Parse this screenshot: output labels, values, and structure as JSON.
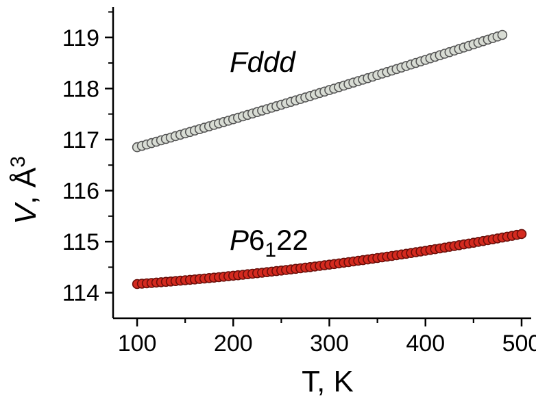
{
  "chart_data": {
    "type": "scatter",
    "xlabel": "T, K",
    "ylabel": {
      "var": "V",
      "rest": ", Å",
      "sup": "3"
    },
    "xlim": [
      75,
      510
    ],
    "ylim": [
      113.5,
      119.6
    ],
    "x_ticks": [
      "100",
      "200",
      "300",
      "400",
      "500"
    ],
    "y_ticks": [
      "114",
      "115",
      "116",
      "117",
      "118",
      "119"
    ],
    "grid": false,
    "series": [
      {
        "name": "Fddd",
        "marker_fill": "#d8dcd4",
        "marker_edge": "#555555",
        "x_start": 100,
        "x_end": 480,
        "x_step": 5,
        "y_start": 116.85,
        "y_end": 119.05
      },
      {
        "name": {
          "italic": "P",
          "main": "6",
          "sub": "1",
          "tail": "22"
        },
        "marker_fill": "#d42a1f",
        "marker_edge": "#6a0f0a",
        "x_start": 100,
        "x_end": 500,
        "x_step": 5,
        "y_start": 114.17,
        "y_end": 115.15
      }
    ]
  }
}
